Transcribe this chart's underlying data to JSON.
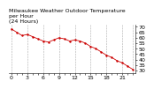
{
  "title": "Milwaukee Weather Outdoor Temperature\nper Hour\n(24 Hours)",
  "hours": [
    0,
    1,
    2,
    3,
    4,
    5,
    6,
    7,
    8,
    9,
    10,
    11,
    12,
    13,
    14,
    15,
    16,
    17,
    18,
    19,
    20,
    21,
    22,
    23
  ],
  "temps": [
    68,
    65,
    62,
    63,
    61,
    59,
    57,
    56,
    58,
    60,
    59,
    57,
    58,
    57,
    55,
    52,
    50,
    47,
    44,
    42,
    39,
    37,
    34,
    31
  ],
  "line_color": "#cc0000",
  "marker_color": "#cc0000",
  "bg_color": "#ffffff",
  "grid_color": "#aaaaaa",
  "title_color": "#000000",
  "ylim": [
    28,
    72
  ],
  "yticks": [
    30,
    35,
    40,
    45,
    50,
    55,
    60,
    65,
    70
  ],
  "ylabel_fontsize": 4.5,
  "title_fontsize": 4.5,
  "xtick_labels": [
    "0",
    "",
    "",
    "3",
    "",
    "",
    "6",
    "",
    "",
    "9",
    "",
    "",
    "12",
    "",
    "",
    "15",
    "",
    "",
    "18",
    "",
    "",
    "21",
    "",
    ""
  ],
  "vgrid_hours": [
    0,
    3,
    6,
    9,
    12,
    15,
    18,
    21,
    23
  ]
}
